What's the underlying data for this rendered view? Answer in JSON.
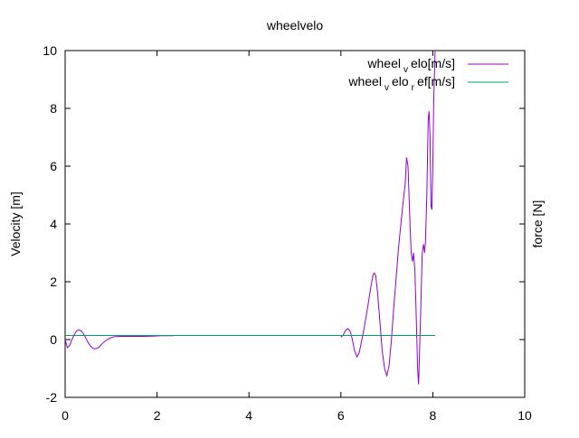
{
  "chart_data": {
    "type": "line",
    "title": "wheelvelo",
    "ylabel": "Velocity [m]",
    "y2label": "force [N]",
    "xlabel": "",
    "xlim": [
      0,
      10
    ],
    "ylim": [
      -2,
      10
    ],
    "x_ticks": [
      "0",
      "2",
      "4",
      "6",
      "8",
      "10"
    ],
    "y_ticks": [
      "-2",
      "0",
      "2",
      "4",
      "6",
      "8",
      "10"
    ],
    "grid": false,
    "legend_position": "top-right",
    "series": [
      {
        "name_parts": [
          "wheel",
          "v",
          "elo[m/s]"
        ],
        "color": "#9400d3",
        "segments": [
          [
            [
              0.0,
              0.0
            ],
            [
              0.05,
              -0.28
            ],
            [
              0.1,
              -0.2
            ],
            [
              0.15,
              0.0
            ],
            [
              0.2,
              0.18
            ],
            [
              0.25,
              0.3
            ],
            [
              0.3,
              0.34
            ],
            [
              0.35,
              0.3
            ],
            [
              0.4,
              0.2
            ],
            [
              0.45,
              0.05
            ],
            [
              0.5,
              -0.1
            ],
            [
              0.55,
              -0.22
            ],
            [
              0.6,
              -0.3
            ],
            [
              0.65,
              -0.32
            ],
            [
              0.7,
              -0.3
            ],
            [
              0.75,
              -0.24
            ],
            [
              0.8,
              -0.15
            ],
            [
              0.85,
              -0.08
            ],
            [
              0.9,
              -0.02
            ],
            [
              0.95,
              0.03
            ],
            [
              1.0,
              0.07
            ],
            [
              1.05,
              0.09
            ],
            [
              1.1,
              0.1
            ],
            [
              1.2,
              0.11
            ],
            [
              1.3,
              0.11
            ],
            [
              1.5,
              0.11
            ],
            [
              1.7,
              0.11
            ],
            [
              1.9,
              0.12
            ],
            [
              2.1,
              0.13
            ],
            [
              2.3,
              0.13
            ],
            [
              2.36,
              0.13
            ]
          ],
          [
            [
              6.0,
              0.08
            ],
            [
              6.05,
              0.15
            ],
            [
              6.1,
              0.32
            ],
            [
              6.15,
              0.38
            ],
            [
              6.2,
              0.3
            ],
            [
              6.25,
              0.0
            ],
            [
              6.3,
              -0.4
            ],
            [
              6.35,
              -0.6
            ],
            [
              6.4,
              -0.45
            ],
            [
              6.45,
              -0.05
            ],
            [
              6.5,
              0.35
            ],
            [
              6.55,
              0.8
            ],
            [
              6.6,
              1.3
            ],
            [
              6.65,
              1.8
            ],
            [
              6.7,
              2.25
            ],
            [
              6.73,
              2.3
            ],
            [
              6.76,
              2.2
            ],
            [
              6.8,
              1.6
            ],
            [
              6.85,
              0.6
            ],
            [
              6.9,
              -0.4
            ],
            [
              6.95,
              -1.0
            ],
            [
              7.0,
              -1.25
            ],
            [
              7.05,
              -0.9
            ],
            [
              7.1,
              0.0
            ],
            [
              7.15,
              1.1
            ],
            [
              7.2,
              2.1
            ],
            [
              7.25,
              3.1
            ],
            [
              7.3,
              3.9
            ],
            [
              7.35,
              4.7
            ],
            [
              7.4,
              5.4
            ],
            [
              7.43,
              6.3
            ],
            [
              7.46,
              6.0
            ],
            [
              7.5,
              4.2
            ],
            [
              7.53,
              3.0
            ],
            [
              7.56,
              2.7
            ],
            [
              7.58,
              3.0
            ],
            [
              7.61,
              2.4
            ],
            [
              7.64,
              0.8
            ],
            [
              7.67,
              -1.0
            ],
            [
              7.69,
              -1.55
            ],
            [
              7.71,
              -0.5
            ],
            [
              7.74,
              1.2
            ],
            [
              7.77,
              3.0
            ],
            [
              7.8,
              3.3
            ],
            [
              7.82,
              3.0
            ],
            [
              7.84,
              3.4
            ],
            [
              7.87,
              5.0
            ],
            [
              7.9,
              7.6
            ],
            [
              7.92,
              7.9
            ],
            [
              7.94,
              7.0
            ],
            [
              7.96,
              4.6
            ],
            [
              7.98,
              4.5
            ],
            [
              8.0,
              6.0
            ],
            [
              8.02,
              8.2
            ],
            [
              8.05,
              10.0
            ]
          ]
        ]
      },
      {
        "name_parts": [
          "wheel",
          "v",
          "elo",
          "r",
          "ef[m/s]"
        ],
        "color": "#009e73",
        "segments": [
          [
            [
              0.0,
              0.14
            ],
            [
              8.05,
              0.14
            ]
          ]
        ]
      }
    ]
  }
}
